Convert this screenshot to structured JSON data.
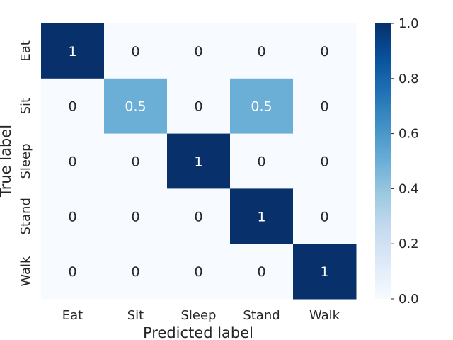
{
  "chart_data": {
    "type": "heatmap",
    "title": "",
    "xlabel": "Predicted label",
    "ylabel": "True label",
    "x_categories": [
      "Eat",
      "Sit",
      "Sleep",
      "Stand",
      "Walk"
    ],
    "y_categories": [
      "Eat",
      "Sit",
      "Sleep",
      "Stand",
      "Walk"
    ],
    "values": [
      [
        1,
        0,
        0,
        0,
        0
      ],
      [
        0,
        0.5,
        0,
        0.5,
        0
      ],
      [
        0,
        0,
        1,
        0,
        0
      ],
      [
        0,
        0,
        0,
        1,
        0
      ],
      [
        0,
        0,
        0,
        0,
        1
      ]
    ],
    "cell_labels": [
      [
        "1",
        "0",
        "0",
        "0",
        "0"
      ],
      [
        "0",
        "0.5",
        "0",
        "0.5",
        "0"
      ],
      [
        "0",
        "0",
        "1",
        "0",
        "0"
      ],
      [
        "0",
        "0",
        "0",
        "1",
        "0"
      ],
      [
        "0",
        "0",
        "0",
        "0",
        "1"
      ]
    ],
    "colorbar": {
      "range": [
        0.0,
        1.0
      ],
      "ticks": [
        0.0,
        0.2,
        0.4,
        0.6,
        0.8,
        1.0
      ],
      "tick_labels": [
        "0.0",
        "0.2",
        "0.4",
        "0.6",
        "0.8",
        "1.0"
      ]
    },
    "colormap": "Blues",
    "colors": {
      "low": "#f7fbff",
      "mid": "#6baed6",
      "high": "#08306b",
      "text_on_dark": "#ffffff",
      "text_on_light": "#262626",
      "axis_text": "#262626"
    },
    "grid": false
  }
}
